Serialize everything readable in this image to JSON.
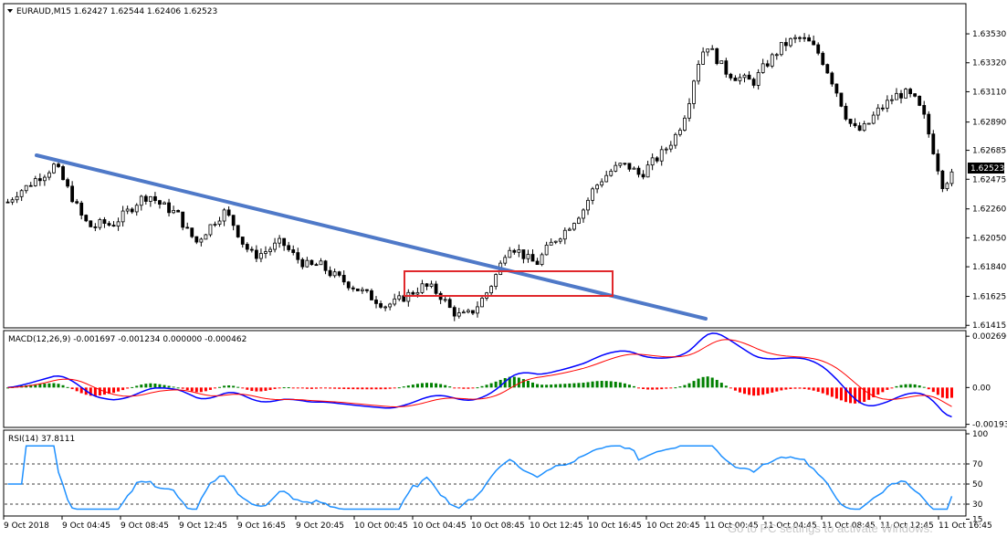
{
  "main_header": "EURAUD,M15  1.62427 1.62544 1.62406 1.62523",
  "macd_header": "MACD(12,26,9) -0.001697 -0.001234 0.000000 -0.000462",
  "rsi_header": "RSI(14) 37.8111",
  "current_price_label": "1.62523",
  "watermark": "Go to PC settings to activate Windows.",
  "colors": {
    "trendline": "#4f79c8",
    "highlight_box": "#e0282c",
    "macd_line": "#0000ff",
    "signal_line": "#ff0000",
    "hist_pos": "#008000",
    "hist_neg": "#ff0000",
    "rsi_line": "#1e90ff",
    "candle": "#000000"
  },
  "chart_data": [
    {
      "type": "candlestick",
      "symbol": "EURAUD",
      "timeframe": "M15",
      "ylim": [
        1.6141,
        1.6359
      ],
      "y_ticks": [
        "1.63530",
        "1.63320",
        "1.63110",
        "1.62890",
        "1.62685",
        "1.62475",
        "1.62260",
        "1.62050",
        "1.61840",
        "1.61625",
        "1.61415"
      ],
      "x_tick_labels": [
        "9 Oct 2018",
        "9 Oct 04:45",
        "9 Oct 08:45",
        "9 Oct 12:45",
        "9 Oct 16:45",
        "9 Oct 20:45",
        "10 Oct 00:45",
        "10 Oct 04:45",
        "10 Oct 08:45",
        "10 Oct 12:45",
        "10 Oct 16:45",
        "10 Oct 20:45",
        "11 Oct 00:45",
        "11 Oct 04:45",
        "11 Oct 08:45",
        "11 Oct 12:45",
        "11 Oct 16:45"
      ],
      "close_path": [
        1.6231,
        1.6238,
        1.6242,
        1.6248,
        1.6252,
        1.6258,
        1.6245,
        1.6232,
        1.6218,
        1.6212,
        1.6216,
        1.6214,
        1.622,
        1.6226,
        1.6233,
        1.6236,
        1.623,
        1.6226,
        1.6222,
        1.621,
        1.6202,
        1.621,
        1.6218,
        1.6224,
        1.6214,
        1.62,
        1.6192,
        1.6194,
        1.6198,
        1.6202,
        1.6194,
        1.6188,
        1.6184,
        1.6186,
        1.618,
        1.6176,
        1.6172,
        1.6168,
        1.6164,
        1.616,
        1.6156,
        1.6158,
        1.6162,
        1.6166,
        1.617,
        1.6168,
        1.6162,
        1.6152,
        1.6148,
        1.615,
        1.6158,
        1.6168,
        1.6182,
        1.62,
        1.6196,
        1.619,
        1.6186,
        1.6196,
        1.6204,
        1.621,
        1.6218,
        1.6226,
        1.624,
        1.6248,
        1.6254,
        1.6258,
        1.6256,
        1.625,
        1.6258,
        1.6264,
        1.6272,
        1.6282,
        1.63,
        1.633,
        1.6346,
        1.6336,
        1.6326,
        1.6322,
        1.632,
        1.6318,
        1.6328,
        1.6336,
        1.6344,
        1.6348,
        1.635,
        1.6346,
        1.6338,
        1.6324,
        1.6308,
        1.629,
        1.6282,
        1.6286,
        1.6296,
        1.6302,
        1.6308,
        1.631,
        1.6306,
        1.6294,
        1.627,
        1.6244,
        1.625
      ]
    },
    {
      "type": "line",
      "name": "MACD(12,26,9)",
      "values": {
        "main": -0.001697,
        "signal": -0.001234,
        "zero": 0.0,
        "histogram": -0.000462
      },
      "y_ticks": [
        "0.002696",
        "0.00",
        "-0.001934"
      ],
      "ylim": [
        -0.002,
        0.0028
      ]
    },
    {
      "type": "line",
      "name": "RSI(14)",
      "value": 37.8111,
      "ylim": [
        20,
        100
      ],
      "y_ticks": [
        "100",
        "70",
        "50",
        "30",
        "15"
      ],
      "levels": [
        70,
        50,
        30
      ]
    }
  ]
}
